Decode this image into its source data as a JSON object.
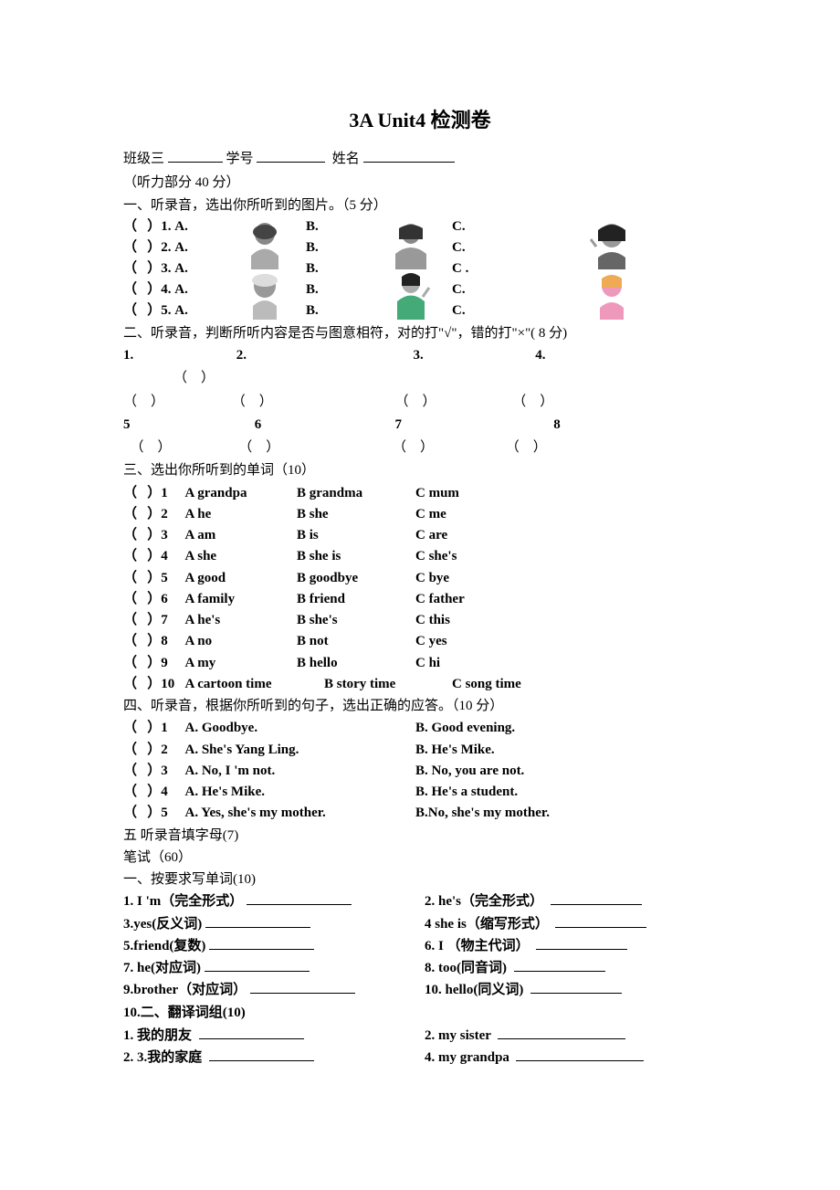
{
  "title": {
    "en": "3A Unit4 ",
    "zh": "检测卷"
  },
  "header": {
    "class_label": "班级三",
    "id_label": "学号",
    "name_label": "姓名"
  },
  "listening": {
    "title": "（听力部分 40 分）",
    "s1": {
      "title": "一、听录音，选出你所听到的图片。（5 分）",
      "rows": [
        {
          "n": "1. A.",
          "b": "B.",
          "c": "C."
        },
        {
          "n": "2. A.",
          "b": "B.",
          "c": "C."
        },
        {
          "n": "3. A.",
          "b": "B.",
          "c": "C ."
        },
        {
          "n": "4. A.",
          "b": "B.",
          "c": "C."
        },
        {
          "n": "5. A.",
          "b": "B.",
          "c": "C."
        }
      ]
    },
    "s2": {
      "title": "二、听录音，判断所听内容是否与图意相符，对的打\"√\"，错的打\"×\"( 8 分)",
      "row1": [
        "1.",
        "2.",
        "3.",
        "4."
      ],
      "row2": [
        "5",
        "6",
        "7",
        "8"
      ]
    },
    "s3": {
      "title": "三、选出你所听到的单词（10）",
      "rows": [
        {
          "n": "1",
          "a": "A grandpa",
          "b": "B grandma",
          "c": "C mum"
        },
        {
          "n": "2",
          "a": "A he",
          "b": "B she",
          "c": "C me"
        },
        {
          "n": "3",
          "a": "A am",
          "b": "B is",
          "c": "C are"
        },
        {
          "n": "4",
          "a": "A she",
          "b": "B she is",
          "c": "C she's"
        },
        {
          "n": "5",
          "a": "A good",
          "b": "B goodbye",
          "c": "C bye"
        },
        {
          "n": "6",
          "a": "A family",
          "b": "B friend",
          "c": "C father"
        },
        {
          "n": "7",
          "a": "A he's",
          "b": "B she's",
          "c": "C this"
        },
        {
          "n": "8",
          "a": "A no",
          "b": "B not",
          "c": "C yes"
        },
        {
          "n": "9",
          "a": "A my",
          "b": "B hello",
          "c": "C hi"
        },
        {
          "n": "10",
          "a": "A cartoon time",
          "b": "B story time",
          "c": "C song time"
        }
      ]
    },
    "s4": {
      "title": "四、听录音，根据你所听到的句子，选出正确的应答。（10 分）",
      "rows": [
        {
          "n": "1",
          "a": "A. Goodbye.",
          "b": "B. Good evening."
        },
        {
          "n": "2",
          "a": "A. She's Yang Ling.",
          "b": "B. He's Mike."
        },
        {
          "n": "3",
          "a": "A. No, I 'm not.",
          "b": "B. No, you are not."
        },
        {
          "n": "4",
          "a": "A. He's Mike.",
          "b": "B. He's a student."
        },
        {
          "n": "5",
          "a": "A. Yes, she's my mother.",
          "b": "B.No, she's my mother."
        }
      ]
    },
    "s5": {
      "title": "五  听录音填字母(7)"
    }
  },
  "written": {
    "title": "笔试（60）",
    "s1": {
      "title": "一、按要求写单词(10)",
      "rows": [
        {
          "l": "1. I 'm（完全形式）",
          "r": "2. he's（完全形式）"
        },
        {
          "l": "3.yes(反义词)",
          "r": "4 she is（缩写形式）"
        },
        {
          "l": "5.friend(复数)",
          "r": "6. I  （物主代词）"
        },
        {
          "l": "7. he(对应词)",
          "r": "8. too(同音词)"
        },
        {
          "l": "9.brother（对应词）",
          "r": "10. hello(同义词)"
        }
      ]
    },
    "s2": {
      "title": "10.二、翻译词组(10)",
      "rows": [
        {
          "l": "1.  我的朋友",
          "r": "2. my sister"
        },
        {
          "l": "2. 3.我的家庭",
          "r": "4. my grandpa"
        }
      ]
    }
  }
}
